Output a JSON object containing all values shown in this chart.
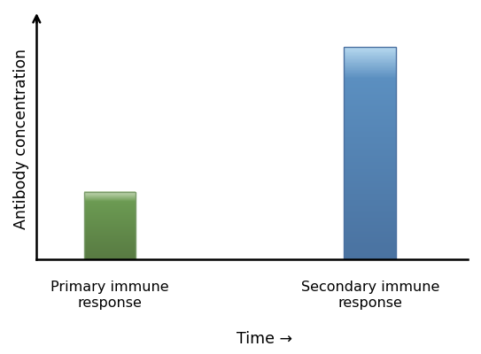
{
  "categories": [
    "Primary immune\nresponse",
    "Secondary immune\nresponse"
  ],
  "values": [
    0.28,
    0.88
  ],
  "bar_colors_top": [
    "#c8dab8",
    "#b8daf0"
  ],
  "bar_colors_mid": [
    "#6b9a52",
    "#5b8fc0"
  ],
  "bar_colors_bot": [
    "#587a42",
    "#4a72a0"
  ],
  "bar_width": 0.32,
  "bar_positions": [
    1.0,
    2.6
  ],
  "xlabel": "Time →",
  "ylabel": "Antibody concentration",
  "ylim": [
    0,
    1.0
  ],
  "xlim": [
    0.55,
    3.2
  ],
  "background_color": "#ffffff",
  "tick_label_fontsize": 11.5,
  "axis_label_fontsize": 12.5,
  "border_color": "#7a9a6a",
  "border_color2": "#4a70a0"
}
